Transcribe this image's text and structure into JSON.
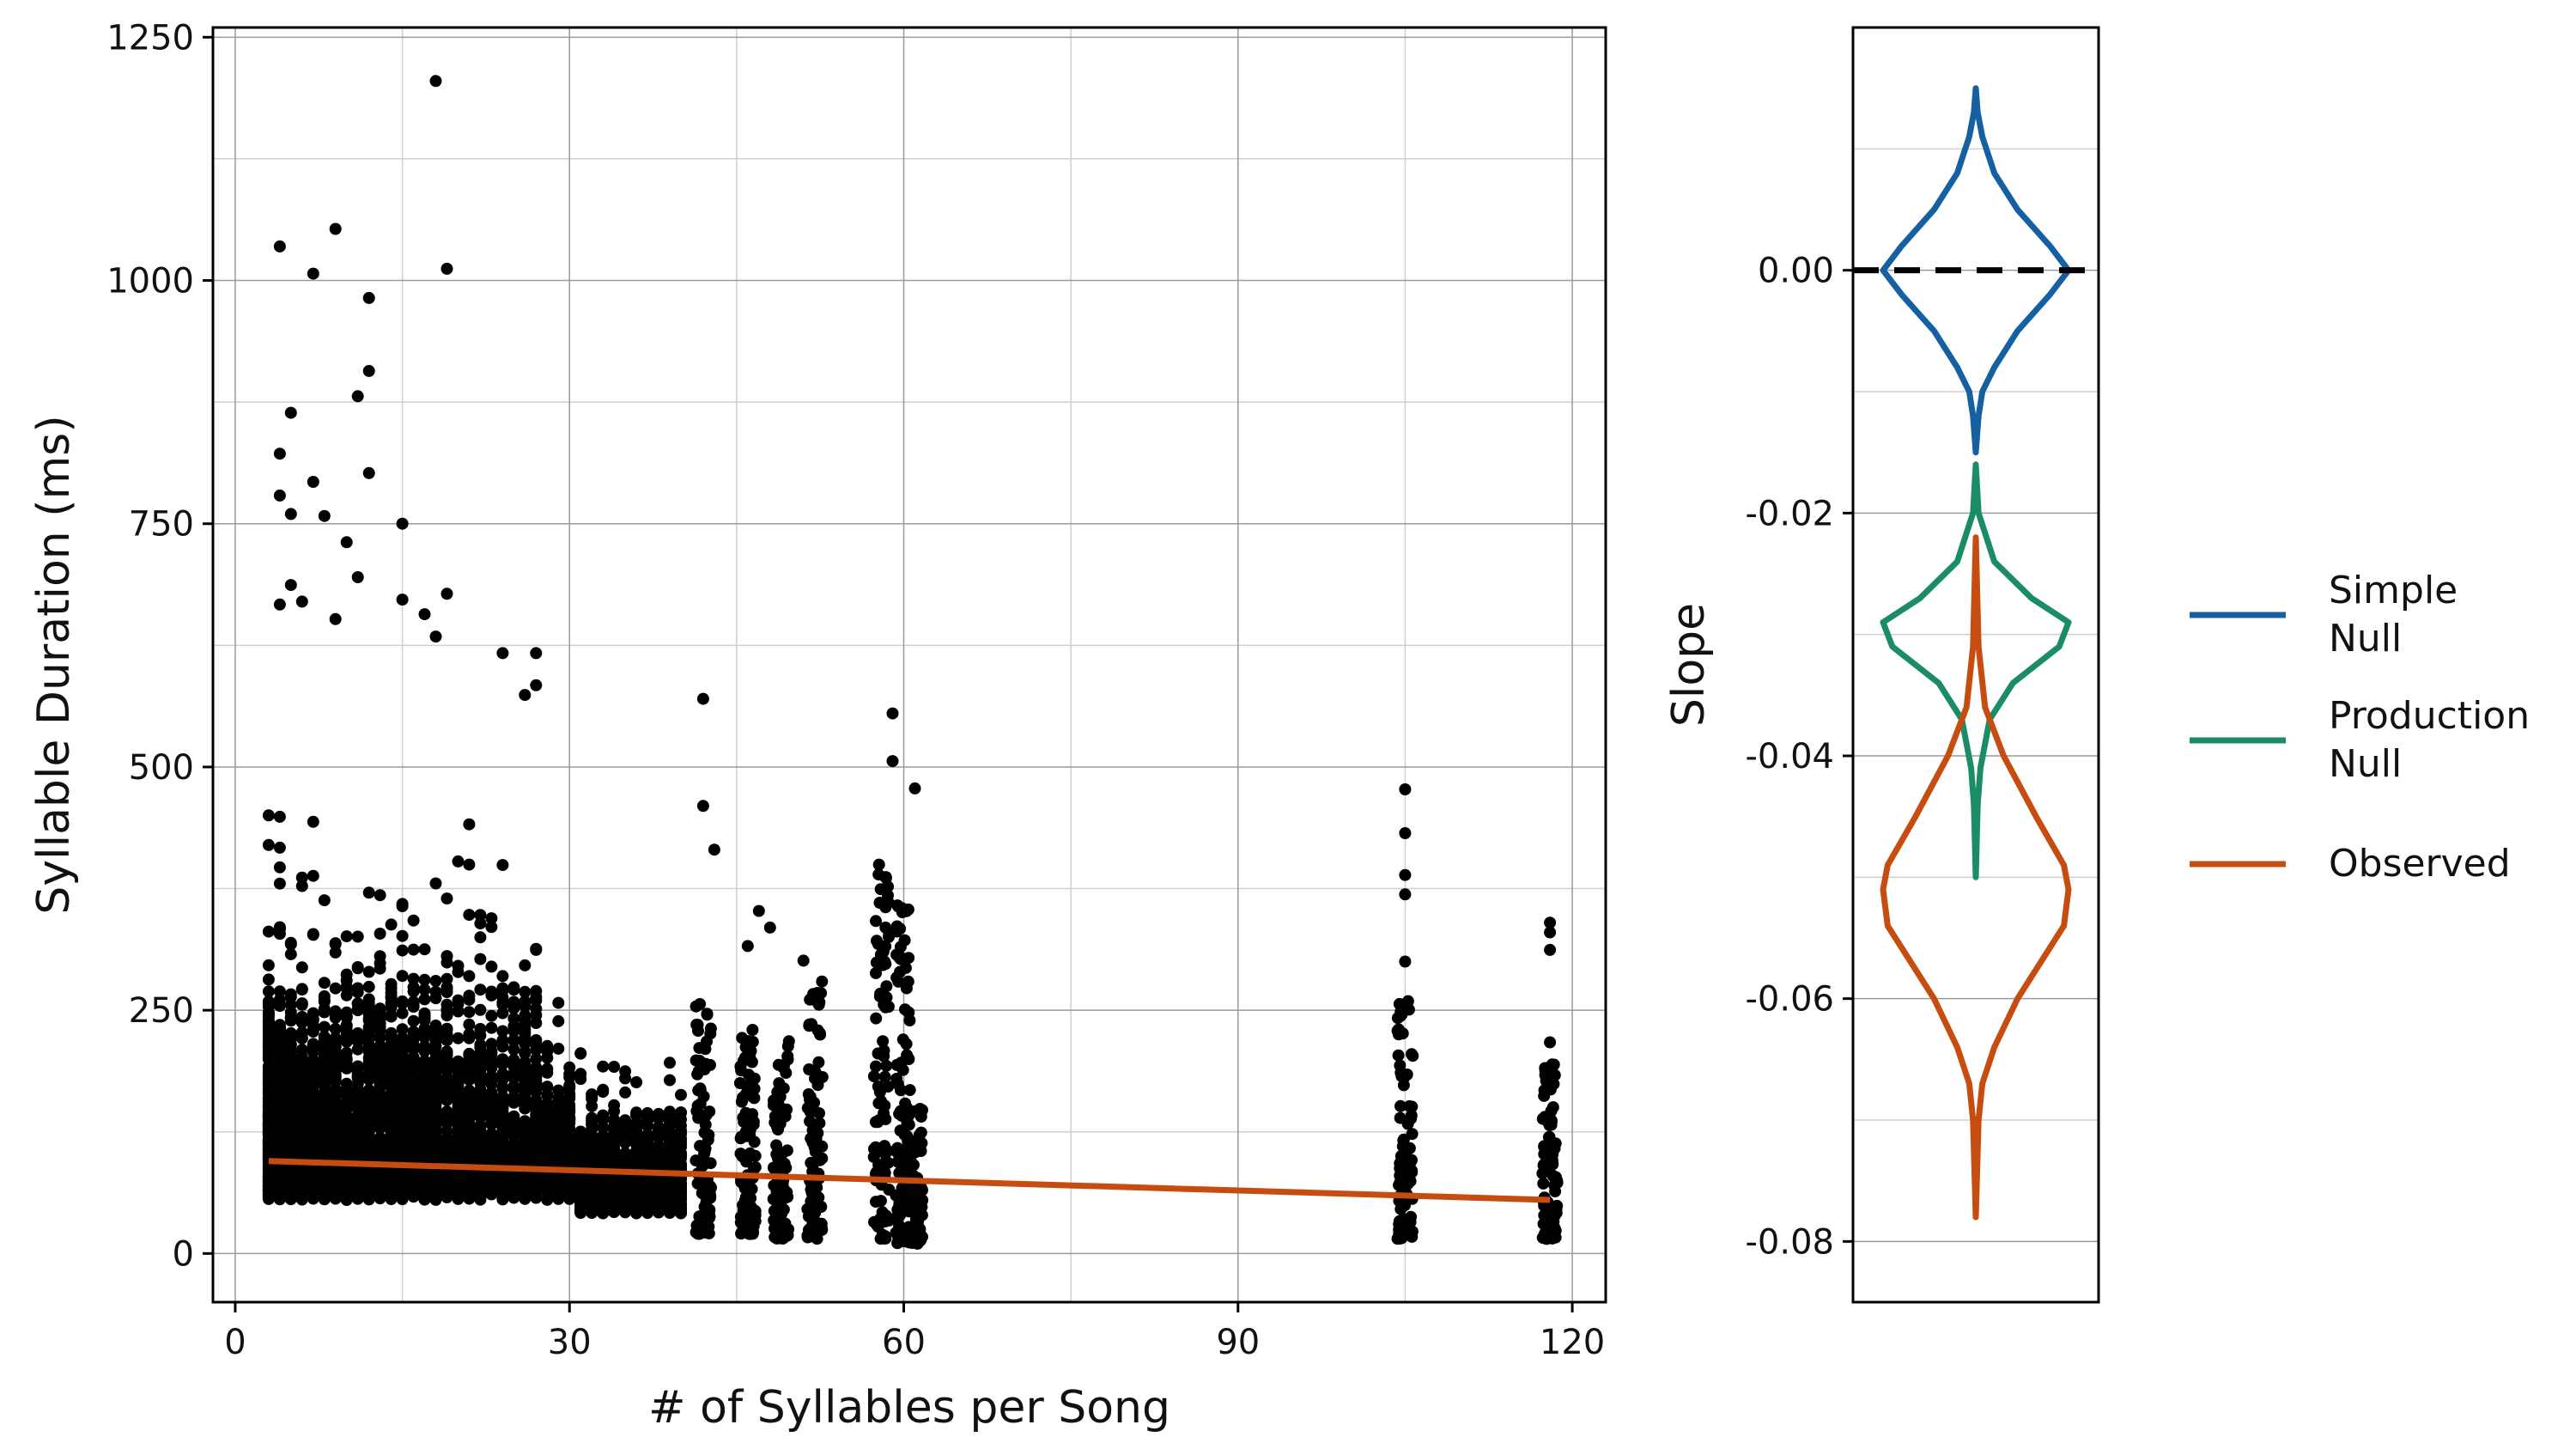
{
  "chart_data": [
    {
      "type": "scatter",
      "xlabel": "# of Syllables per Song",
      "ylabel": "Syllable Duration (ms)",
      "xlim": [
        -2,
        123
      ],
      "ylim": [
        -50,
        1260
      ],
      "xticks": [
        0,
        30,
        60,
        90,
        120
      ],
      "yticks": [
        0,
        250,
        500,
        750,
        1000,
        1250
      ],
      "grid": true,
      "point_color": "#000000",
      "points_sample": [
        [
          18,
          1205
        ],
        [
          4,
          1035
        ],
        [
          9,
          1053
        ],
        [
          7,
          1007
        ],
        [
          19,
          1012
        ],
        [
          12,
          982
        ],
        [
          12,
          907
        ],
        [
          11,
          881
        ],
        [
          5,
          864
        ],
        [
          4,
          822
        ],
        [
          12,
          802
        ],
        [
          4,
          779
        ],
        [
          7,
          793
        ],
        [
          5,
          760
        ],
        [
          8,
          758
        ],
        [
          10,
          731
        ],
        [
          15,
          750
        ],
        [
          11,
          695
        ],
        [
          5,
          687
        ],
        [
          4,
          667
        ],
        [
          6,
          670
        ],
        [
          9,
          652
        ],
        [
          19,
          678
        ],
        [
          15,
          672
        ],
        [
          17,
          657
        ],
        [
          18,
          634
        ],
        [
          24,
          617
        ],
        [
          27,
          617
        ],
        [
          27,
          584
        ],
        [
          26,
          574
        ],
        [
          42,
          570
        ],
        [
          59,
          555
        ],
        [
          59,
          506
        ],
        [
          61,
          478
        ],
        [
          42,
          460
        ],
        [
          43,
          415
        ],
        [
          47,
          352
        ],
        [
          48,
          335
        ],
        [
          46,
          316
        ],
        [
          51,
          301
        ],
        [
          105,
          477
        ],
        [
          105,
          432
        ],
        [
          105,
          389
        ],
        [
          105,
          369
        ],
        [
          105,
          300
        ],
        [
          118,
          340
        ],
        [
          118,
          330
        ],
        [
          118,
          312
        ],
        [
          118,
          217
        ]
      ],
      "column_ranges": [
        {
          "x": 42,
          "ymin": 20,
          "ymax": 260
        },
        {
          "x": 46,
          "ymin": 20,
          "ymax": 230
        },
        {
          "x": 49,
          "ymin": 15,
          "ymax": 220
        },
        {
          "x": 52,
          "ymin": 15,
          "ymax": 280
        },
        {
          "x": 58,
          "ymin": 15,
          "ymax": 400
        },
        {
          "x": 60,
          "ymin": 10,
          "ymax": 360
        },
        {
          "x": 61,
          "ymin": 10,
          "ymax": 150
        },
        {
          "x": 105,
          "ymin": 15,
          "ymax": 260
        },
        {
          "x": 118,
          "ymin": 15,
          "ymax": 200
        }
      ],
      "series": [
        {
          "type": "line",
          "color": "#c64c0f",
          "x": [
            3,
            118
          ],
          "y": [
            95,
            55
          ]
        }
      ]
    },
    {
      "type": "violin",
      "ylabel": "Slope",
      "ylim": [
        -0.085,
        0.02
      ],
      "yticks": [
        0.0,
        -0.02,
        -0.04,
        -0.06,
        -0.08
      ],
      "ytick_labels": [
        "0.00",
        "-0.02",
        "-0.04",
        "-0.06",
        "-0.08"
      ],
      "reference_line": 0,
      "grid": true,
      "series": [
        {
          "name": "Simple\nNull",
          "color": "#1560a0",
          "profile": [
            [
              0.015,
              0
            ],
            [
              0.013,
              0.02
            ],
            [
              0.011,
              0.07
            ],
            [
              0.008,
              0.2
            ],
            [
              0.005,
              0.45
            ],
            [
              0.002,
              0.8
            ],
            [
              0.0,
              1.0
            ],
            [
              -0.002,
              0.8
            ],
            [
              -0.005,
              0.45
            ],
            [
              -0.008,
              0.2
            ],
            [
              -0.01,
              0.07
            ],
            [
              -0.012,
              0.03
            ],
            [
              -0.015,
              0
            ]
          ]
        },
        {
          "name": "Production\nNull",
          "color": "#1a8c68",
          "profile": [
            [
              -0.016,
              0
            ],
            [
              -0.02,
              0.03
            ],
            [
              -0.024,
              0.2
            ],
            [
              -0.027,
              0.6
            ],
            [
              -0.029,
              1.0
            ],
            [
              -0.031,
              0.9
            ],
            [
              -0.034,
              0.4
            ],
            [
              -0.037,
              0.15
            ],
            [
              -0.041,
              0.05
            ],
            [
              -0.044,
              0.02
            ],
            [
              -0.05,
              0
            ]
          ]
        },
        {
          "name": "Observed",
          "color": "#c64c0f",
          "profile": [
            [
              -0.022,
              0
            ],
            [
              -0.031,
              0.03
            ],
            [
              -0.036,
              0.1
            ],
            [
              -0.04,
              0.3
            ],
            [
              -0.045,
              0.65
            ],
            [
              -0.049,
              0.95
            ],
            [
              -0.051,
              1.0
            ],
            [
              -0.054,
              0.95
            ],
            [
              -0.057,
              0.7
            ],
            [
              -0.06,
              0.45
            ],
            [
              -0.064,
              0.2
            ],
            [
              -0.067,
              0.07
            ],
            [
              -0.07,
              0.03
            ],
            [
              -0.078,
              0
            ]
          ]
        }
      ]
    }
  ]
}
